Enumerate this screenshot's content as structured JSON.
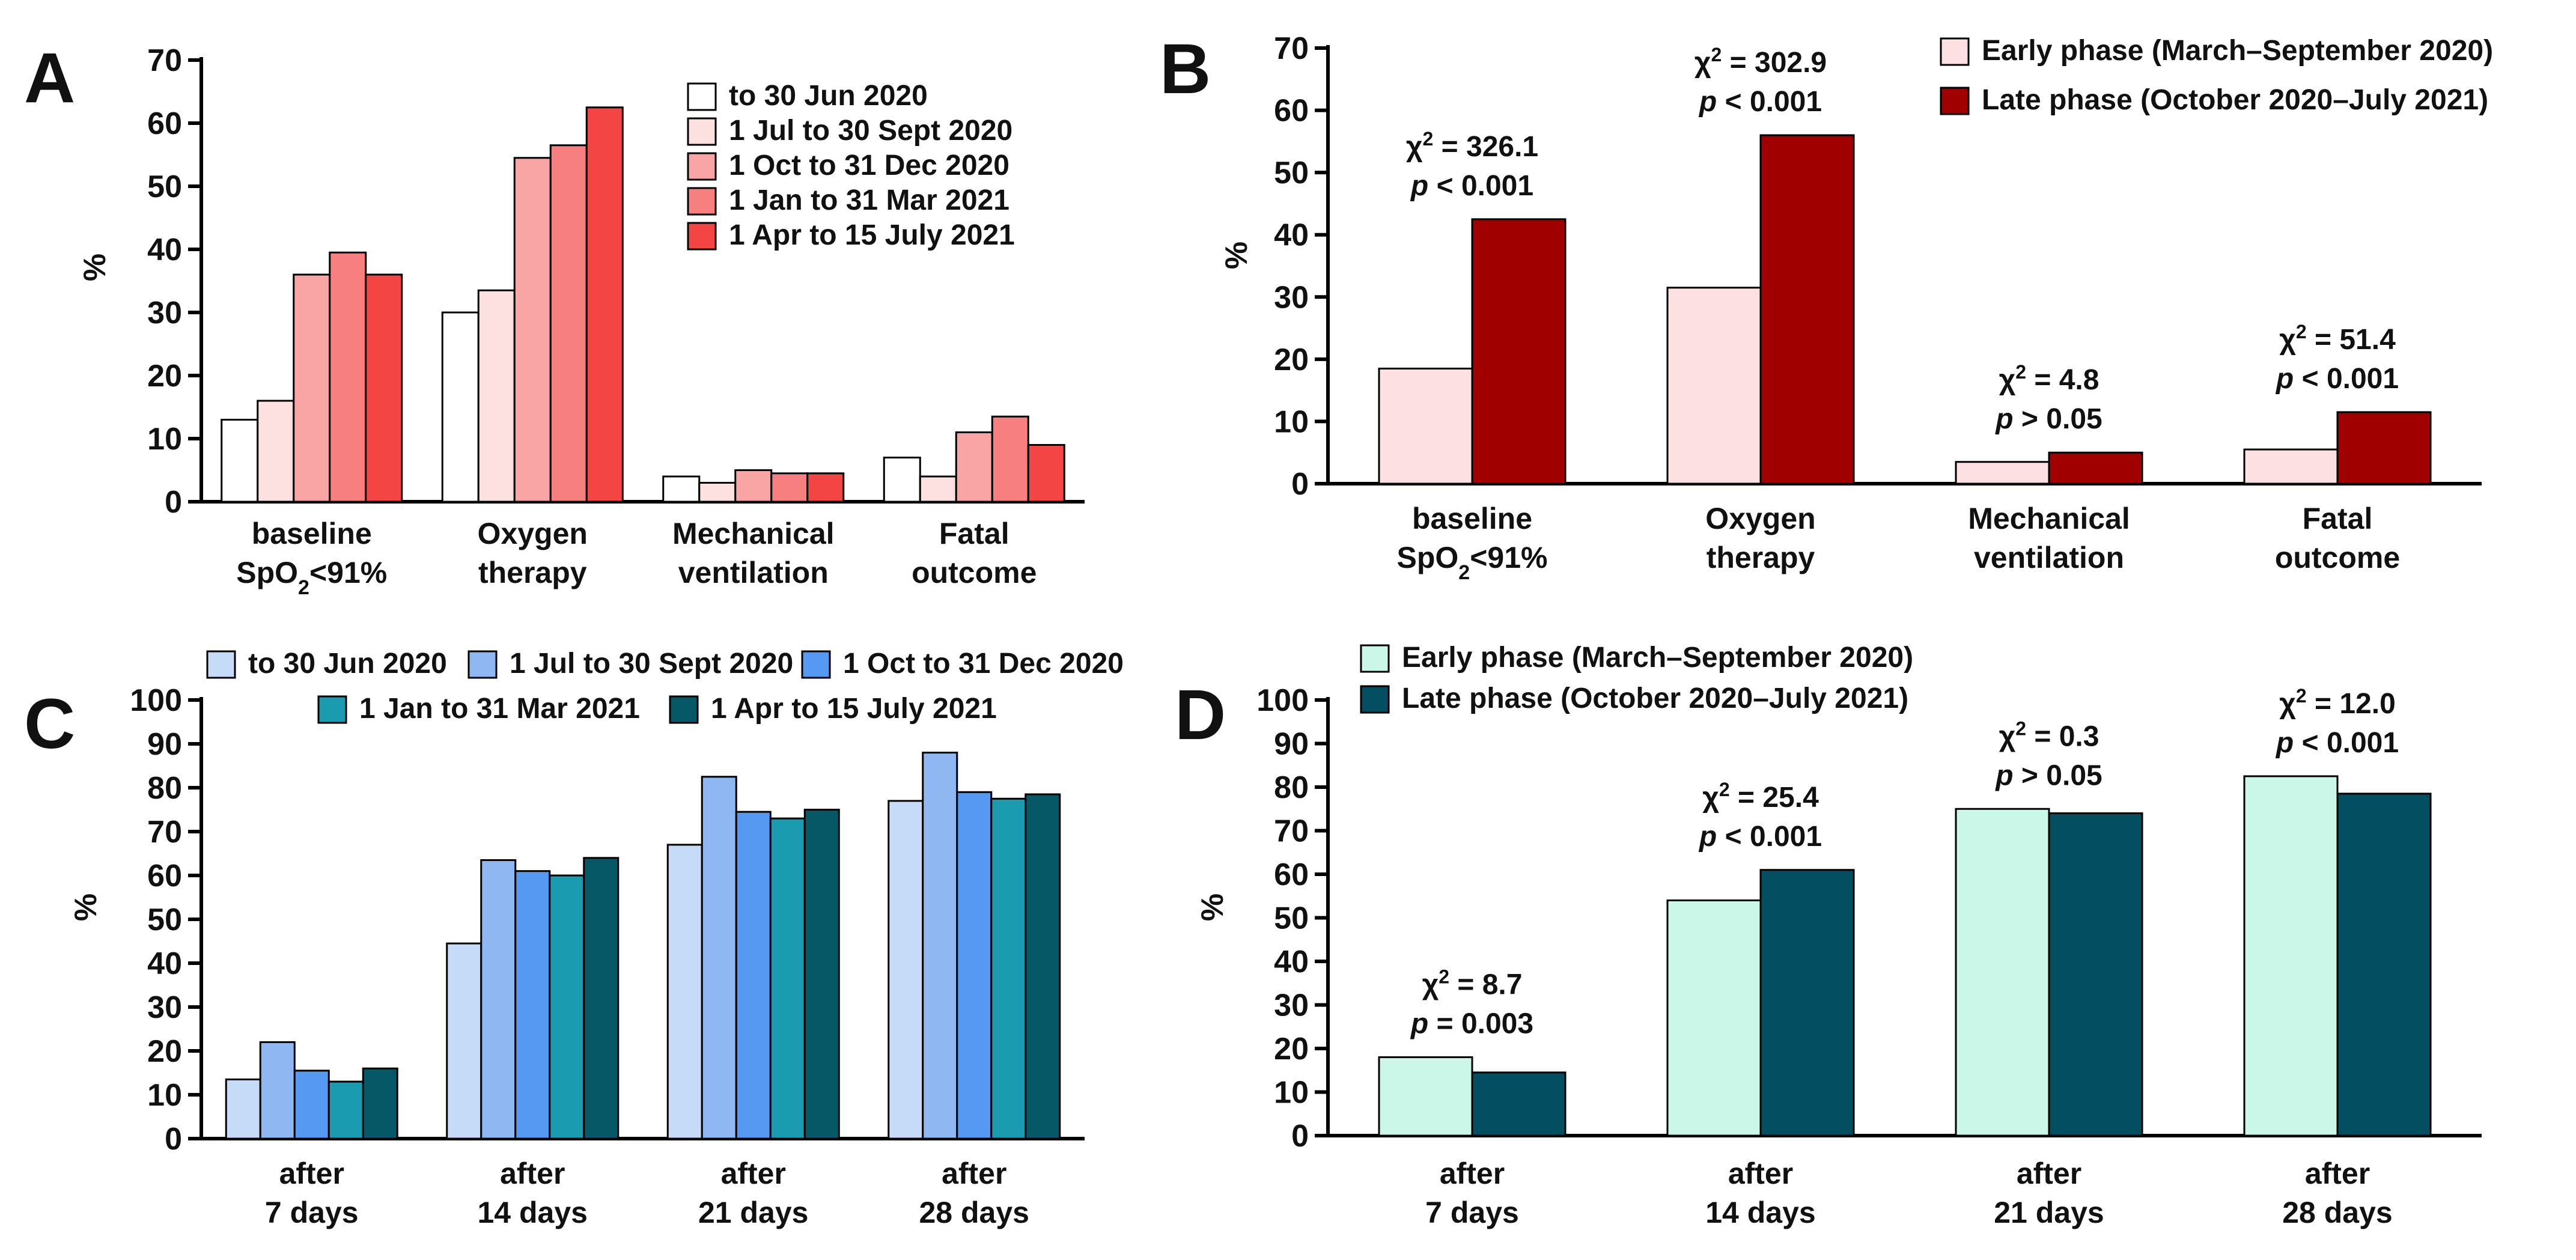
{
  "chart_data": [
    {
      "panel": "A",
      "type": "bar",
      "ylabel": "%",
      "ylim": [
        0,
        70
      ],
      "yticks": [
        0,
        10,
        20,
        30,
        40,
        50,
        60,
        70
      ],
      "categories": [
        [
          "baseline",
          "SpO2<91%"
        ],
        [
          "Oxygen",
          "therapy"
        ],
        [
          "Mechanical",
          "ventilation"
        ],
        [
          "Fatal",
          "outcome"
        ]
      ],
      "legend_position": "top-right",
      "series": [
        {
          "name": "to 30 Jun 2020",
          "color": "#ffffff",
          "values": [
            13,
            30,
            4,
            7
          ]
        },
        {
          "name": "1 Jul to 30 Sept 2020",
          "color": "#fde0e0",
          "values": [
            16,
            33.5,
            3,
            4
          ]
        },
        {
          "name": "1 Oct to 31 Dec 2020",
          "color": "#f9a5a5",
          "values": [
            36,
            54.5,
            5,
            11
          ]
        },
        {
          "name": "1 Jan to 31 Mar 2021",
          "color": "#f77f7f",
          "values": [
            39.5,
            56.5,
            4.5,
            13.5
          ]
        },
        {
          "name": "1 Apr to 15 July 2021",
          "color": "#f44545",
          "values": [
            36,
            62.5,
            4.5,
            9
          ]
        }
      ]
    },
    {
      "panel": "B",
      "type": "bar",
      "ylabel": "%",
      "ylim": [
        0,
        70
      ],
      "yticks": [
        0,
        10,
        20,
        30,
        40,
        50,
        60,
        70
      ],
      "categories": [
        [
          "baseline",
          "SpO2<91%"
        ],
        [
          "Oxygen",
          "therapy"
        ],
        [
          "Mechanical",
          "ventilation"
        ],
        [
          "Fatal",
          "outcome"
        ]
      ],
      "legend_position": "top-right",
      "series": [
        {
          "name": "Early phase (March–September 2020)",
          "color": "#fde0e2",
          "values": [
            18.5,
            31.5,
            3.5,
            5.5
          ]
        },
        {
          "name": "Late phase (October 2020–July 2021)",
          "color": "#a00000",
          "values": [
            42.5,
            56,
            5,
            11.5
          ]
        }
      ],
      "annotations": [
        {
          "chi2": "326.1",
          "p": "< 0.001"
        },
        {
          "chi2": "302.9",
          "p": "< 0.001"
        },
        {
          "chi2": "4.8",
          "p": "> 0.05"
        },
        {
          "chi2": "51.4",
          "p": "< 0.001"
        }
      ]
    },
    {
      "panel": "C",
      "type": "bar",
      "ylabel": "%",
      "ylim": [
        0,
        100
      ],
      "yticks": [
        0,
        10,
        20,
        30,
        40,
        50,
        60,
        70,
        80,
        90,
        100
      ],
      "categories": [
        [
          "after",
          "7 days"
        ],
        [
          "after",
          "14 days"
        ],
        [
          "after",
          "21 days"
        ],
        [
          "after",
          "28 days"
        ]
      ],
      "legend_position": "top",
      "series": [
        {
          "name": "to 30 Jun 2020",
          "color": "#c6dbf7",
          "values": [
            13.5,
            44.5,
            67,
            77
          ]
        },
        {
          "name": "1 Jul to 30 Sept 2020",
          "color": "#8fb8f2",
          "values": [
            22,
            63.5,
            82.5,
            88
          ]
        },
        {
          "name": "1 Oct to 31 Dec 2020",
          "color": "#5599f2",
          "values": [
            15.5,
            61,
            74.5,
            79
          ]
        },
        {
          "name": "1 Jan to 31 Mar 2021",
          "color": "#1a9bb0",
          "values": [
            13,
            60,
            73,
            77.5
          ]
        },
        {
          "name": "1 Apr to 15 July 2021",
          "color": "#065866",
          "values": [
            16,
            64,
            75,
            78.5
          ]
        }
      ]
    },
    {
      "panel": "D",
      "type": "bar",
      "ylabel": "%",
      "ylim": [
        0,
        100
      ],
      "yticks": [
        0,
        10,
        20,
        30,
        40,
        50,
        60,
        70,
        80,
        90,
        100
      ],
      "categories": [
        [
          "after",
          "7 days"
        ],
        [
          "after",
          "14 days"
        ],
        [
          "after",
          "21 days"
        ],
        [
          "after",
          "28 days"
        ]
      ],
      "legend_position": "top-left",
      "series": [
        {
          "name": "Early phase (March–September 2020)",
          "color": "#cbf7e8",
          "values": [
            18,
            54,
            75,
            82.5
          ]
        },
        {
          "name": "Late phase (October 2020–July 2021)",
          "color": "#034e61",
          "values": [
            14.5,
            61,
            74,
            78.5
          ]
        }
      ],
      "annotations": [
        {
          "chi2": "8.7",
          "p": "= 0.003"
        },
        {
          "chi2": "25.4",
          "p": "< 0.001"
        },
        {
          "chi2": "0.3",
          "p": "> 0.05"
        },
        {
          "chi2": "12.0",
          "p": "< 0.001"
        }
      ]
    }
  ]
}
